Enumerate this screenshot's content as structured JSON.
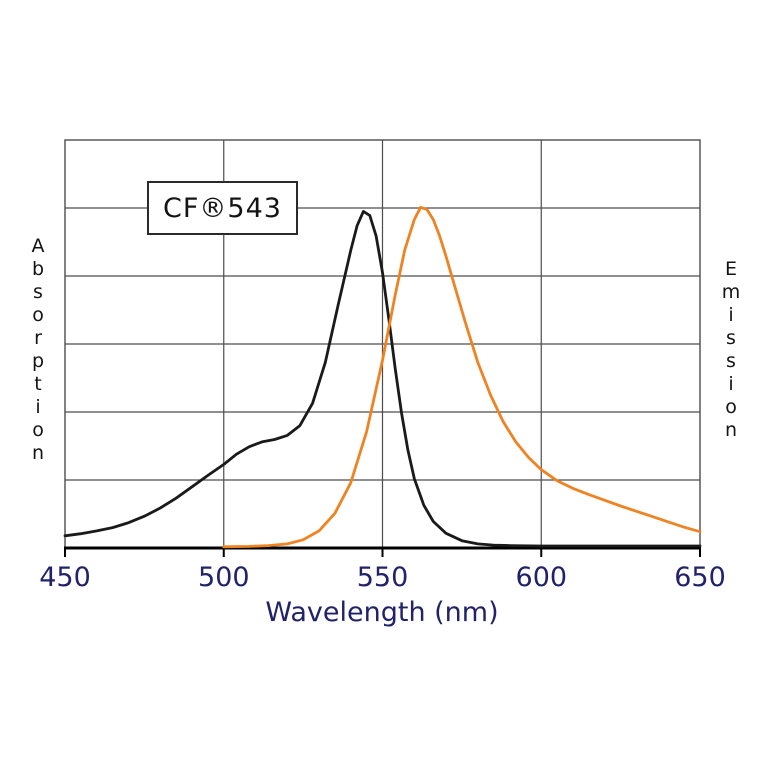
{
  "page": {
    "background": "#ffffff"
  },
  "chart_data": {
    "type": "line",
    "title": "",
    "annotation": "CF®543",
    "xlabel": "Wavelength (nm)",
    "ylabel_left": "Absorption",
    "ylabel_right": "Emission",
    "xlim": [
      450,
      650
    ],
    "ylim": [
      0,
      1
    ],
    "x_ticks": [
      450,
      500,
      550,
      600,
      650
    ],
    "x_tick_labels": [
      "450",
      "500",
      "550",
      "600",
      "650"
    ],
    "y_divisions": 6,
    "grid": true,
    "legend_position": "none",
    "colors": {
      "absorption_line": "#1a1a1a",
      "emission_line": "#ef8322",
      "grid": "#4d4d4d",
      "axis": "#000000",
      "tick_text": "#22226a"
    },
    "series": [
      {
        "name": "Absorption",
        "color": "#1a1a1a",
        "points": [
          [
            450,
            0.03
          ],
          [
            455,
            0.035
          ],
          [
            460,
            0.042
          ],
          [
            465,
            0.05
          ],
          [
            470,
            0.062
          ],
          [
            475,
            0.078
          ],
          [
            480,
            0.098
          ],
          [
            485,
            0.122
          ],
          [
            490,
            0.15
          ],
          [
            495,
            0.178
          ],
          [
            500,
            0.205
          ],
          [
            504,
            0.23
          ],
          [
            508,
            0.248
          ],
          [
            512,
            0.26
          ],
          [
            516,
            0.266
          ],
          [
            520,
            0.276
          ],
          [
            524,
            0.3
          ],
          [
            528,
            0.355
          ],
          [
            532,
            0.455
          ],
          [
            536,
            0.595
          ],
          [
            540,
            0.73
          ],
          [
            542,
            0.79
          ],
          [
            544,
            0.825
          ],
          [
            546,
            0.815
          ],
          [
            548,
            0.765
          ],
          [
            550,
            0.675
          ],
          [
            552,
            0.56
          ],
          [
            554,
            0.44
          ],
          [
            556,
            0.33
          ],
          [
            558,
            0.24
          ],
          [
            560,
            0.17
          ],
          [
            563,
            0.105
          ],
          [
            566,
            0.065
          ],
          [
            570,
            0.036
          ],
          [
            575,
            0.018
          ],
          [
            580,
            0.01
          ],
          [
            585,
            0.007
          ],
          [
            590,
            0.006
          ],
          [
            600,
            0.005
          ],
          [
            620,
            0.005
          ],
          [
            650,
            0.005
          ]
        ]
      },
      {
        "name": "Emission",
        "color": "#ef8322",
        "points": [
          [
            500,
            0.003
          ],
          [
            508,
            0.004
          ],
          [
            514,
            0.006
          ],
          [
            520,
            0.01
          ],
          [
            525,
            0.02
          ],
          [
            530,
            0.042
          ],
          [
            535,
            0.085
          ],
          [
            540,
            0.16
          ],
          [
            545,
            0.285
          ],
          [
            550,
            0.46
          ],
          [
            554,
            0.62
          ],
          [
            557,
            0.73
          ],
          [
            560,
            0.805
          ],
          [
            562,
            0.835
          ],
          [
            564,
            0.83
          ],
          [
            566,
            0.805
          ],
          [
            568,
            0.765
          ],
          [
            570,
            0.715
          ],
          [
            573,
            0.635
          ],
          [
            576,
            0.555
          ],
          [
            580,
            0.455
          ],
          [
            584,
            0.375
          ],
          [
            588,
            0.31
          ],
          [
            592,
            0.26
          ],
          [
            596,
            0.222
          ],
          [
            600,
            0.192
          ],
          [
            605,
            0.165
          ],
          [
            610,
            0.146
          ],
          [
            615,
            0.131
          ],
          [
            620,
            0.117
          ],
          [
            625,
            0.103
          ],
          [
            630,
            0.09
          ],
          [
            635,
            0.077
          ],
          [
            640,
            0.064
          ],
          [
            645,
            0.051
          ],
          [
            650,
            0.04
          ]
        ]
      }
    ]
  }
}
